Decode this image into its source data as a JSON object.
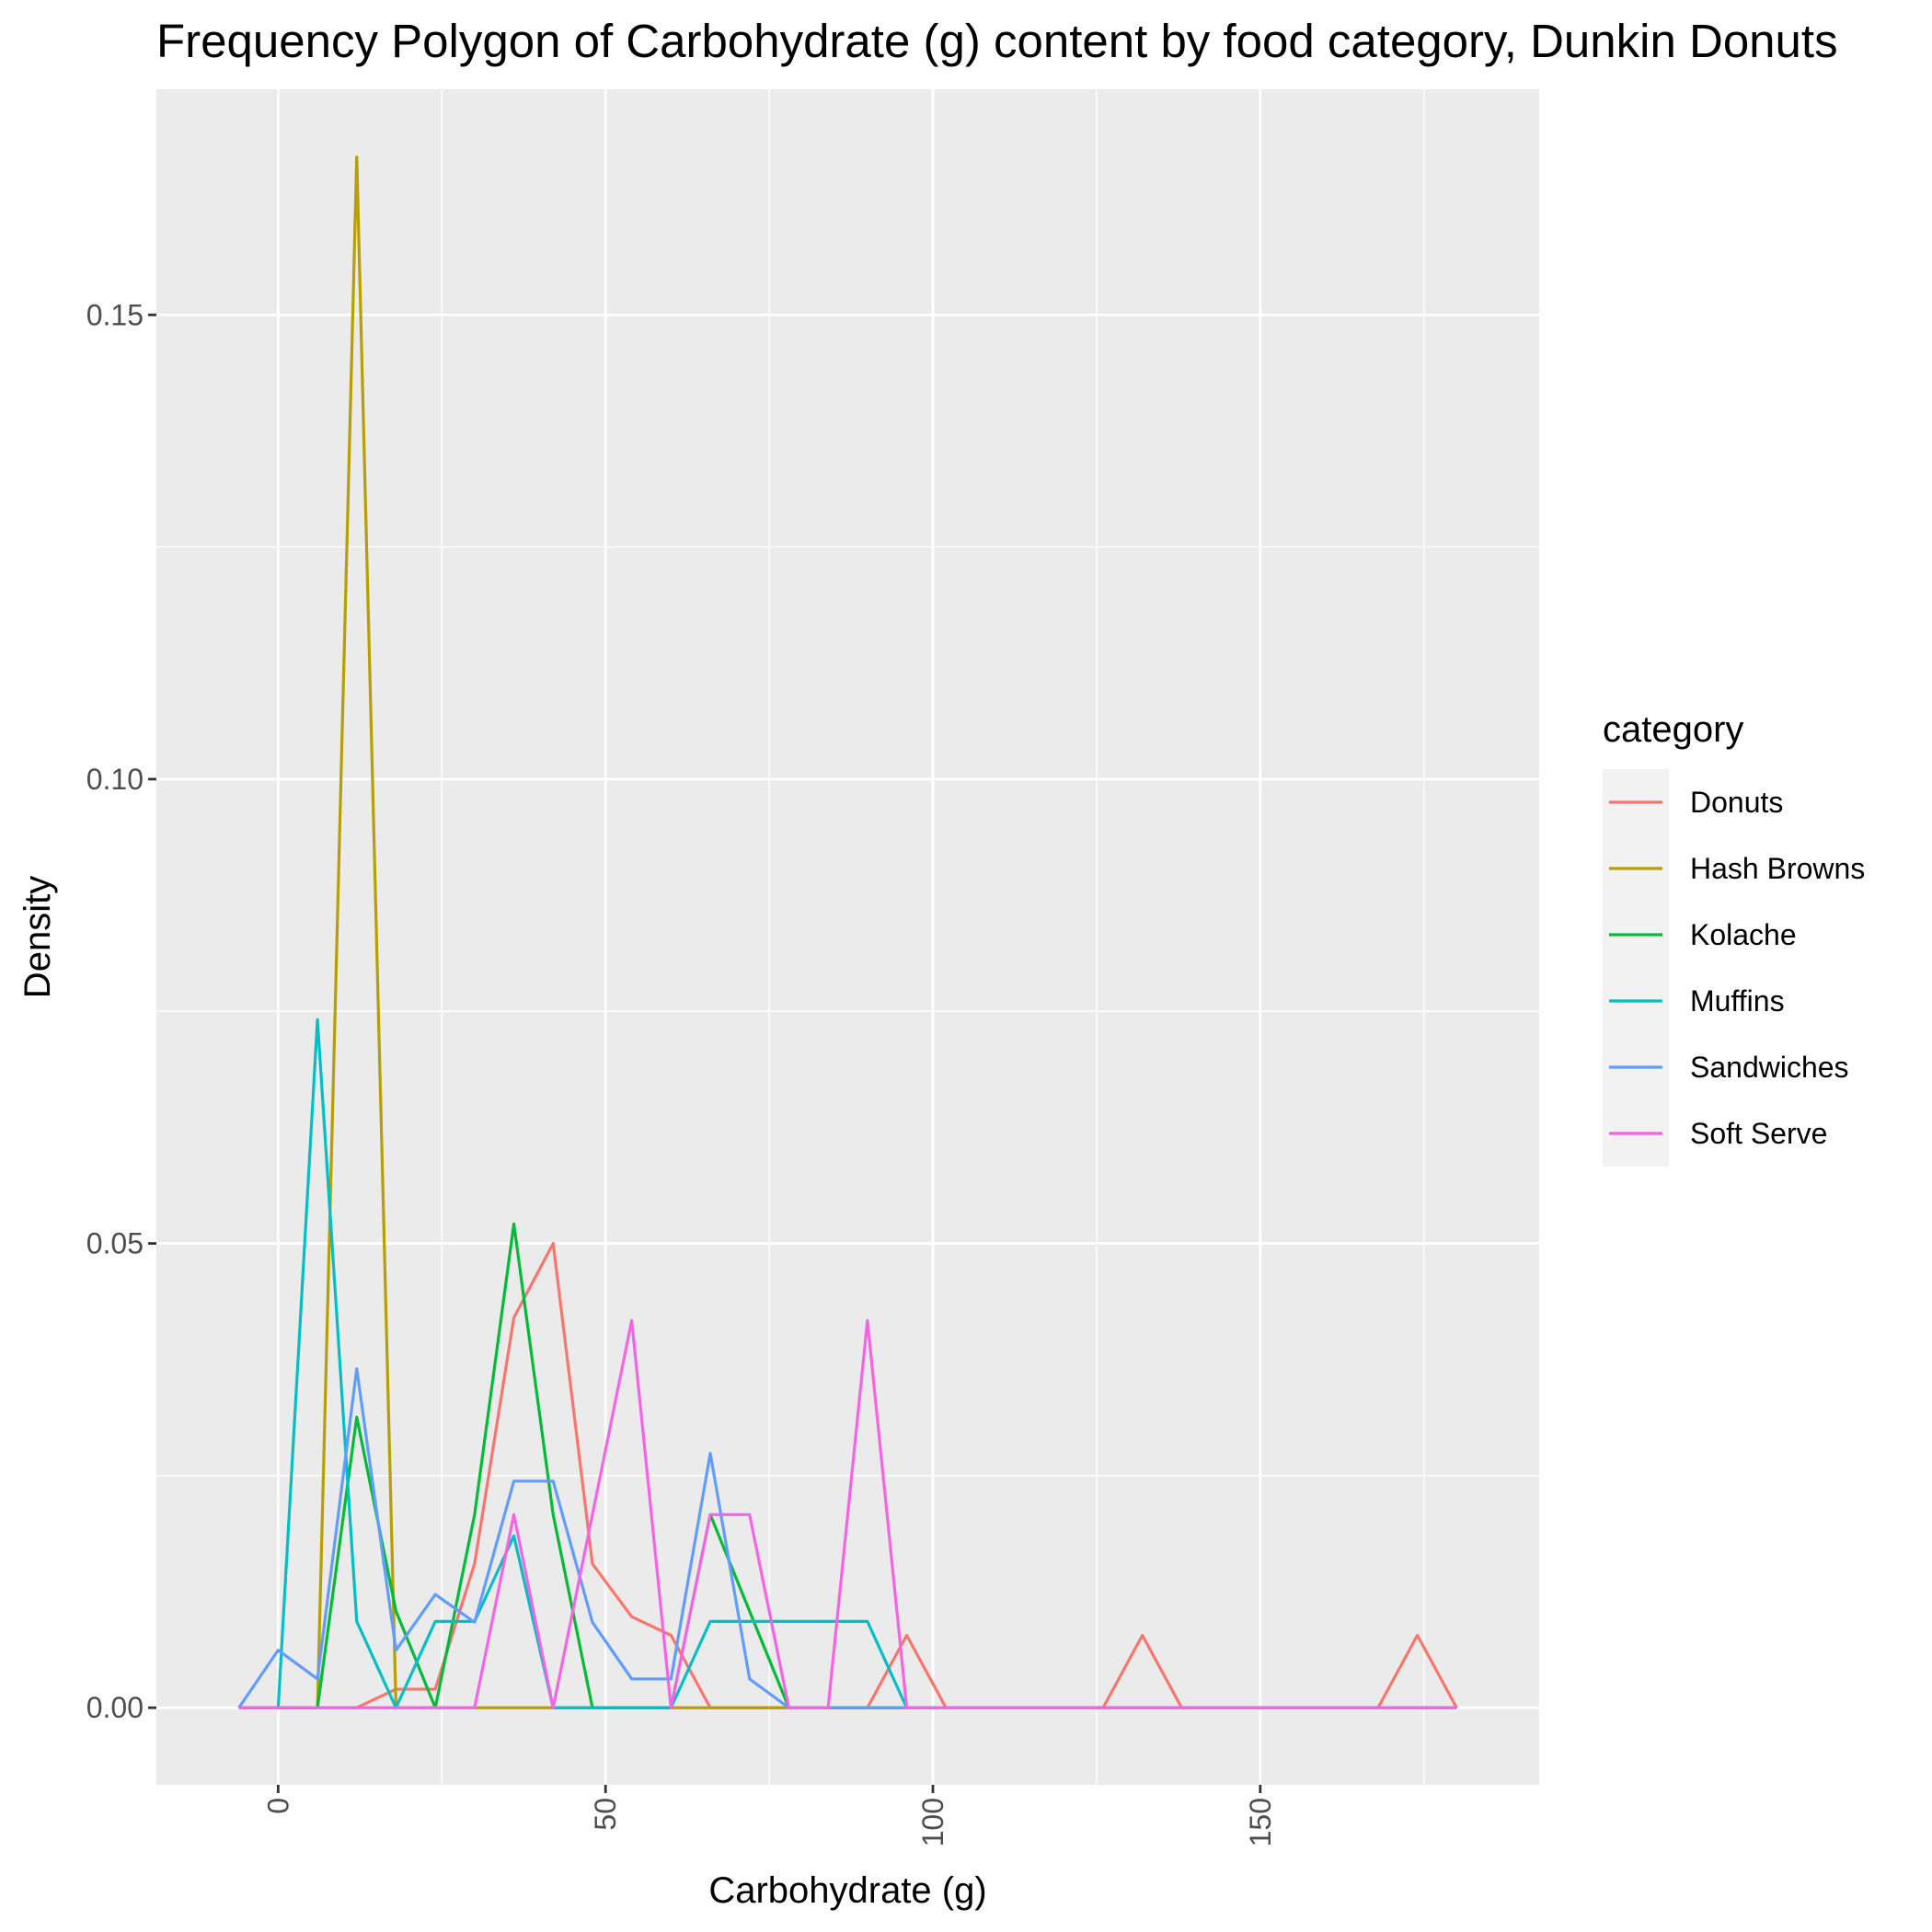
{
  "chart_data": {
    "type": "line",
    "title": "Frequency Polygon of Carbohydrate (g) content by food category, Dunkin Donuts",
    "xlabel": "Carbohydrate (g)",
    "ylabel": "Density",
    "xlim": [
      -18.6,
      192.6
    ],
    "ylim": [
      -0.0083,
      0.1743
    ],
    "x_ticks": [
      0,
      50,
      100,
      150
    ],
    "x_tick_labels": [
      "0",
      "50",
      "100",
      "150"
    ],
    "x_minor_ticks": [
      -25,
      25,
      75,
      125,
      175
    ],
    "y_ticks": [
      0.0,
      0.05,
      0.1,
      0.15
    ],
    "y_tick_labels": [
      "0.00",
      "0.05",
      "0.10",
      "0.15"
    ],
    "y_minor_ticks": [
      0.025,
      0.075,
      0.125
    ],
    "grid": true,
    "legend": {
      "title": "category",
      "position": "right"
    },
    "x": [
      -6,
      0,
      6,
      12,
      18,
      24,
      30,
      36,
      42,
      48,
      54,
      60,
      66,
      72,
      78,
      84,
      90,
      96,
      102,
      108,
      114,
      120,
      126,
      132,
      138,
      144,
      150,
      156,
      162,
      168,
      174,
      180
    ],
    "series": [
      {
        "name": "Donuts",
        "color": "#F8766D",
        "values": [
          0,
          0,
          0,
          0,
          0.002,
          0.002,
          0.0155,
          0.042,
          0.05,
          0.0155,
          0.0098,
          0.0078,
          0,
          0,
          0,
          0,
          0,
          0.0078,
          0,
          0,
          0,
          0,
          0,
          0.0078,
          0,
          0,
          0,
          0,
          0,
          0,
          0.0078,
          0
        ]
      },
      {
        "name": "Hash Browns",
        "color": "#B79F00",
        "values": [
          0,
          0,
          0,
          0.167,
          0,
          0,
          0,
          0,
          0,
          0,
          0,
          0,
          0,
          0,
          0,
          0,
          0,
          0,
          0,
          0,
          0,
          0,
          0,
          0,
          0,
          0,
          0,
          0,
          0,
          0,
          0,
          0
        ]
      },
      {
        "name": "Kolache",
        "color": "#00BA38",
        "values": [
          0,
          0,
          0,
          0.0313,
          0.0104,
          0,
          0.0208,
          0.0521,
          0.0208,
          0,
          0,
          0,
          0.0208,
          0.0104,
          0,
          0,
          0,
          0,
          0,
          0,
          0,
          0,
          0,
          0,
          0,
          0,
          0,
          0,
          0,
          0,
          0,
          0
        ]
      },
      {
        "name": "Muffins",
        "color": "#00BFC4",
        "values": [
          0,
          0,
          0.0741,
          0.0093,
          0,
          0.0093,
          0.0093,
          0.0185,
          0,
          0,
          0,
          0,
          0.0093,
          0.0093,
          0.0093,
          0.0093,
          0.0093,
          0,
          0,
          0,
          0,
          0,
          0,
          0,
          0,
          0,
          0,
          0,
          0,
          0,
          0,
          0
        ]
      },
      {
        "name": "Sandwiches",
        "color": "#619CFF",
        "values": [
          0,
          0.0062,
          0.0031,
          0.0365,
          0.0062,
          0.0122,
          0.0092,
          0.0244,
          0.0244,
          0.0092,
          0.0031,
          0.0031,
          0.0274,
          0.0031,
          0,
          0,
          0,
          0,
          0,
          0,
          0,
          0,
          0,
          0,
          0,
          0,
          0,
          0,
          0,
          0,
          0,
          0
        ]
      },
      {
        "name": "Soft Serve",
        "color": "#F564E3",
        "values": [
          0,
          0,
          0,
          0,
          0,
          0,
          0,
          0.0208,
          0,
          0.0208,
          0.0417,
          0,
          0.0208,
          0.0208,
          0,
          0,
          0.0417,
          0,
          0,
          0,
          0,
          0,
          0,
          0,
          0,
          0,
          0,
          0,
          0,
          0,
          0,
          0
        ]
      }
    ]
  }
}
